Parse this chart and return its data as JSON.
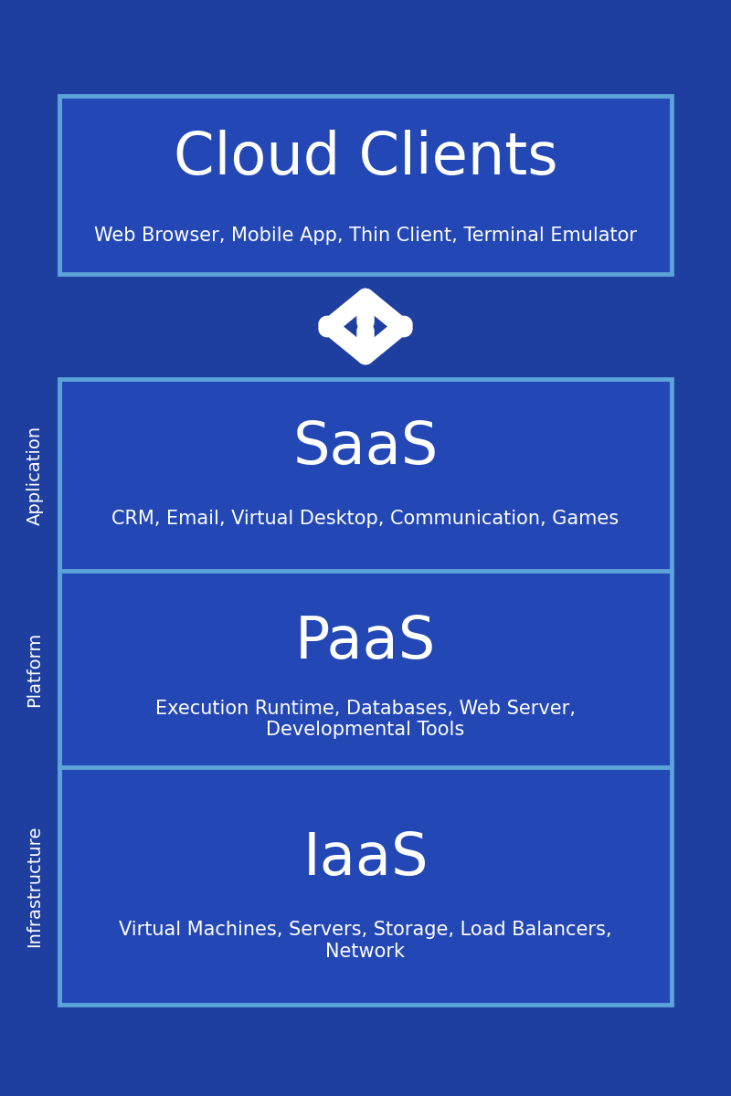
{
  "bg_color": "#1e3fa0",
  "box_fill_color": "#2347b5",
  "box_edge_color": "#5ba3d9",
  "text_color": "#ffffff",
  "title_fontsize": 46,
  "subtitle_fontsize": 15,
  "side_label_fontsize": 14,
  "cloud_clients": {
    "title": "Cloud Clients",
    "subtitle": "Web Browser, Mobile App, Thin Client, Terminal Emulator"
  },
  "saas": {
    "title": "SaaS",
    "subtitle": "CRM, Email, Virtual Desktop, Communication, Games",
    "side_label": "Application"
  },
  "paas": {
    "title": "PaaS",
    "subtitle": "Execution Runtime, Databases, Web Server,\nDevelopmental Tools",
    "side_label": "Platform"
  },
  "iaas": {
    "title": "IaaS",
    "subtitle": "Virtual Machines, Servers, Storage, Load Balancers,\nNetwork",
    "side_label": "Infrastructure"
  }
}
